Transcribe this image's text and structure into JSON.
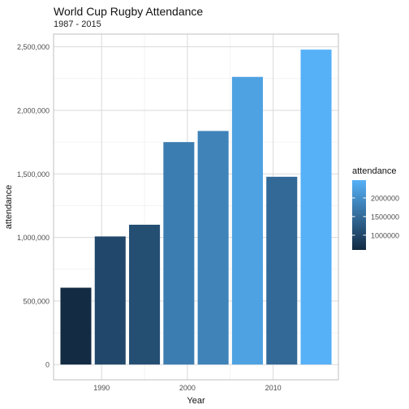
{
  "chart_data": {
    "type": "bar",
    "title": "World Cup Rugby Attendance",
    "subtitle": "1987 - 2015",
    "xlabel": "Year",
    "ylabel": "attendance",
    "x": [
      1987,
      1991,
      1995,
      1999,
      2003,
      2007,
      2011,
      2015
    ],
    "values": [
      604500,
      1007760,
      1100000,
      1750000,
      1837547,
      2263223,
      1477294,
      2477805
    ],
    "xlim": [
      1984.4,
      2017.6
    ],
    "ylim": [
      -120000,
      2600000
    ],
    "x_ticks": [
      1990,
      2000,
      2010
    ],
    "x_tick_labels": [
      "1990",
      "2000",
      "2010"
    ],
    "y_ticks": [
      0,
      500000,
      1000000,
      1500000,
      2000000,
      2500000
    ],
    "y_tick_labels": [
      "0",
      "500,000",
      "1,000,000",
      "1,500,000",
      "2,000,000",
      "2,500,000"
    ],
    "grid": true,
    "legend": {
      "title": "attendance",
      "position": "right",
      "ticks": [
        1000000,
        1500000,
        2000000
      ],
      "tick_labels": [
        "1000000",
        "1500000",
        "2000000"
      ],
      "color_low": "#132B43",
      "color_high": "#56B1F7"
    }
  }
}
